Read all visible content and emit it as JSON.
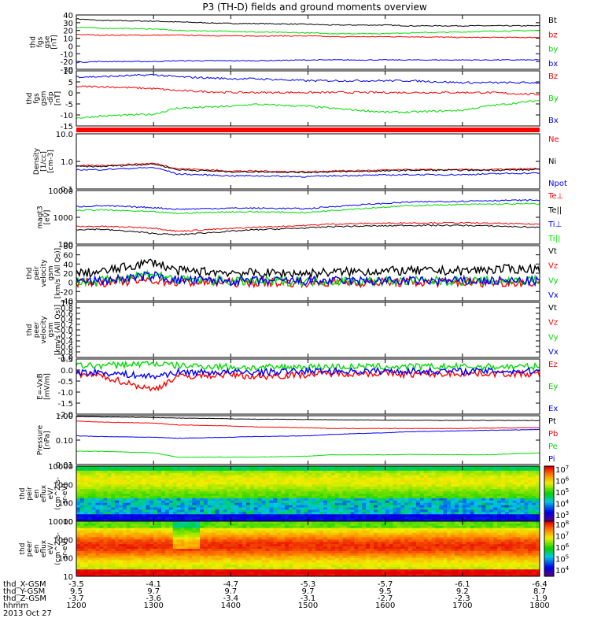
{
  "title": "P3 (TH-D) fields and ground moments overview",
  "date": "2013 Oct 27",
  "orbit": {
    "labels": [
      "thd_X-GSM",
      "thd_Y-GSM",
      "thd_Z-GSM",
      "hhmm"
    ],
    "columns": [
      {
        "x": "-3.5",
        "y": "9.5",
        "z": "-3.7",
        "t": "1200"
      },
      {
        "x": "-4.1",
        "y": "9.7",
        "z": "-3.6",
        "t": "1300"
      },
      {
        "x": "-4.7",
        "y": "9.7",
        "z": "-3.4",
        "t": "1400"
      },
      {
        "x": "-5.3",
        "y": "9.7",
        "z": "-3.1",
        "t": "1500"
      },
      {
        "x": "-5.7",
        "y": "9.5",
        "z": "-2.7",
        "t": "1600"
      },
      {
        "x": "-6.1",
        "y": "9.2",
        "z": "-2.3",
        "t": "1700"
      },
      {
        "x": "-6.4",
        "y": "8.7",
        "z": "-1.9",
        "t": "1800"
      }
    ]
  },
  "colors": {
    "black": "#000000",
    "red": "#ff0000",
    "green": "#00dd00",
    "blue": "#0000ff"
  },
  "chart_data": [
    {
      "type": "line",
      "ylabel": [
        "thd",
        "fgs",
        "gse",
        "[nT]"
      ],
      "ylim": [
        -30,
        40
      ],
      "yticks": [
        "40",
        "30",
        "20",
        "10",
        "0",
        "-10",
        "-20",
        "-30"
      ],
      "x": [
        1200,
        1230,
        1300,
        1330,
        1400,
        1430,
        1500,
        1530,
        1600,
        1630,
        1700,
        1730,
        1800
      ],
      "series": [
        {
          "name": "Bt",
          "color": "black",
          "values": [
            35,
            33,
            32,
            31,
            29,
            29,
            28,
            27,
            27,
            26,
            26,
            26,
            26
          ]
        },
        {
          "name": "bz",
          "color": "red",
          "values": [
            15,
            14,
            14,
            14,
            13,
            13,
            13,
            12,
            12,
            12,
            11,
            11,
            11
          ]
        },
        {
          "name": "by",
          "color": "green",
          "values": [
            24,
            23,
            22,
            20,
            19,
            18,
            17,
            16,
            16,
            17,
            18,
            19,
            20
          ]
        },
        {
          "name": "bx",
          "color": "blue",
          "values": [
            -21,
            -20,
            -20,
            -19,
            -19,
            -19,
            -18,
            -18,
            -18,
            -18,
            -18,
            -18,
            -18
          ]
        }
      ]
    },
    {
      "type": "line",
      "ylabel": [
        "thd",
        "fgs",
        "gsm",
        "-dip",
        "[nT]"
      ],
      "ylim": [
        -18,
        10
      ],
      "yticks": [
        "10",
        "5",
        "0",
        "-5",
        "-10",
        "-15"
      ],
      "x": [
        1200,
        1230,
        1300,
        1330,
        1400,
        1430,
        1500,
        1530,
        1600,
        1630,
        1700,
        1730,
        1800
      ],
      "series": [
        {
          "name": "Bz",
          "color": "red",
          "values": [
            2,
            2,
            1,
            0,
            -1,
            -1,
            -1,
            -1,
            -1,
            -1,
            -1,
            -1,
            -2
          ]
        },
        {
          "name": "By",
          "color": "green",
          "values": [
            -14,
            -13,
            -12,
            -9,
            -8,
            -7,
            -8,
            -9,
            -11,
            -11,
            -10,
            -8,
            -5
          ]
        },
        {
          "name": "Bx",
          "color": "blue",
          "values": [
            7,
            7,
            8,
            7,
            6,
            6,
            5,
            5,
            5,
            5,
            4,
            4,
            4
          ]
        }
      ]
    },
    {
      "type": "line",
      "ylabel": [
        "Density",
        "[1/cc]",
        "[cm-3]"
      ],
      "ylim": [
        0.1,
        10
      ],
      "log": true,
      "yticks": [
        "10.0",
        "1.0",
        "0.1"
      ],
      "x": [
        1200,
        1230,
        1300,
        1330,
        1400,
        1430,
        1500,
        1530,
        1600,
        1630,
        1700,
        1730,
        1800
      ],
      "series": [
        {
          "name": "Ne",
          "color": "red",
          "values": [
            0.7,
            0.7,
            0.85,
            0.55,
            0.45,
            0.45,
            0.42,
            0.45,
            0.48,
            0.5,
            0.5,
            0.5,
            0.55
          ]
        },
        {
          "name": "Ni",
          "color": "black",
          "values": [
            0.65,
            0.65,
            0.8,
            0.5,
            0.42,
            0.42,
            0.4,
            0.42,
            0.45,
            0.48,
            0.48,
            0.48,
            0.5
          ]
        },
        {
          "name": "Npot",
          "color": "blue",
          "values": [
            0.5,
            0.5,
            0.6,
            0.35,
            0.3,
            0.3,
            0.28,
            0.3,
            0.32,
            0.33,
            0.33,
            0.35,
            0.38
          ]
        }
      ]
    },
    {
      "type": "line",
      "ylabel": [
        "magt3",
        "[eV]"
      ],
      "ylim": [
        100,
        10000
      ],
      "log": true,
      "yticks": [
        "10000",
        "1000",
        "100"
      ],
      "x": [
        1200,
        1230,
        1300,
        1330,
        1400,
        1430,
        1500,
        1530,
        1600,
        1630,
        1700,
        1730,
        1800
      ],
      "series": [
        {
          "name": "Te⊥",
          "color": "red",
          "values": [
            450,
            460,
            400,
            300,
            380,
            420,
            500,
            560,
            600,
            620,
            620,
            600,
            550
          ]
        },
        {
          "name": "Te||",
          "color": "black",
          "values": [
            350,
            360,
            250,
            220,
            300,
            340,
            400,
            450,
            480,
            500,
            500,
            480,
            420
          ]
        },
        {
          "name": "Ti⊥",
          "color": "blue",
          "values": [
            2500,
            2700,
            2300,
            2000,
            2200,
            2200,
            2100,
            2500,
            3300,
            3700,
            4000,
            4200,
            4400
          ]
        },
        {
          "name": "Ti||",
          "color": "green",
          "values": [
            1800,
            1900,
            1600,
            1400,
            1600,
            1600,
            1500,
            1800,
            2400,
            2700,
            3000,
            3100,
            3200
          ]
        }
      ]
    },
    {
      "type": "line",
      "ylabel": [
        "thd",
        "peir",
        "velocity",
        "gsm",
        "[km/s (All Qs)]"
      ],
      "ylim": [
        -40,
        80
      ],
      "yticks": [
        "80",
        "60",
        "40",
        "20",
        "0",
        "-20",
        "-40"
      ],
      "x": [
        1200,
        1230,
        1300,
        1330,
        1400,
        1430,
        1500,
        1530,
        1600,
        1630,
        1700,
        1730,
        1800
      ],
      "series": [
        {
          "name": "Vt",
          "color": "black",
          "values": [
            20,
            22,
            45,
            25,
            22,
            20,
            20,
            22,
            25,
            25,
            25,
            28,
            30
          ]
        },
        {
          "name": "Vz",
          "color": "red",
          "values": [
            0,
            0,
            5,
            0,
            0,
            0,
            0,
            0,
            0,
            0,
            0,
            0,
            0
          ]
        },
        {
          "name": "Vy",
          "color": "green",
          "values": [
            2,
            2,
            20,
            5,
            3,
            2,
            2,
            3,
            3,
            3,
            3,
            3,
            5
          ]
        },
        {
          "name": "Vx",
          "color": "blue",
          "values": [
            3,
            3,
            15,
            5,
            3,
            3,
            3,
            3,
            3,
            3,
            3,
            3,
            3
          ]
        }
      ]
    },
    {
      "type": "line",
      "ylabel": [
        "thd",
        "peer",
        "velocity",
        "gsm",
        "[km/s (All Qs)]"
      ],
      "ylim": [
        -1,
        1
      ],
      "yticks": [
        "1.0",
        "0.8",
        "0.6",
        "0.4",
        "0.2",
        "0.0",
        "-0.2",
        "-0.4",
        "-0.6",
        "-0.8",
        "-1.0"
      ],
      "series": [
        {
          "name": "Vt",
          "color": "black",
          "values": []
        },
        {
          "name": "Vz",
          "color": "red",
          "values": []
        },
        {
          "name": "Vy",
          "color": "green",
          "values": []
        },
        {
          "name": "Vx",
          "color": "blue",
          "values": []
        }
      ]
    },
    {
      "type": "line",
      "ylabel": [
        "E=-VxB",
        "[mV/m]"
      ],
      "ylim": [
        -2,
        0.5
      ],
      "yticks": [
        "0.5",
        "0.0",
        "-0.5",
        "-1.0",
        "-1.5",
        "-2.0"
      ],
      "x": [
        1200,
        1230,
        1300,
        1330,
        1400,
        1430,
        1500,
        1530,
        1600,
        1630,
        1700,
        1730,
        1800
      ],
      "series": [
        {
          "name": "Ez",
          "color": "red",
          "values": [
            -0.2,
            -0.25,
            -0.9,
            -0.3,
            -0.2,
            -0.3,
            -0.2,
            -0.15,
            -0.15,
            -0.2,
            -0.15,
            -0.15,
            -0.2
          ]
        },
        {
          "name": "Ey",
          "color": "green",
          "values": [
            0.2,
            0.2,
            0.3,
            0.2,
            0.15,
            0.1,
            0.15,
            0.15,
            0.15,
            0.15,
            0.15,
            0.15,
            0.15
          ]
        },
        {
          "name": "Ex",
          "color": "blue",
          "values": [
            -0.1,
            -0.1,
            -0.3,
            -0.1,
            -0.1,
            -0.1,
            -0.05,
            -0.05,
            -0.05,
            -0.05,
            -0.05,
            -0.05,
            -0.05
          ]
        }
      ]
    },
    {
      "type": "line",
      "ylabel": [
        "Pressure",
        "[nPa]"
      ],
      "ylim": [
        0.01,
        1
      ],
      "log": true,
      "yticks": [
        "1.00",
        "0.10",
        "0.01"
      ],
      "x": [
        1200,
        1230,
        1300,
        1330,
        1400,
        1430,
        1500,
        1530,
        1600,
        1630,
        1700,
        1730,
        1800
      ],
      "series": [
        {
          "name": "Pt",
          "color": "black",
          "values": [
            0.95,
            0.9,
            0.85,
            0.8,
            0.75,
            0.72,
            0.7,
            0.68,
            0.66,
            0.65,
            0.64,
            0.64,
            0.64
          ]
        },
        {
          "name": "Pb",
          "color": "red",
          "values": [
            0.6,
            0.55,
            0.5,
            0.42,
            0.38,
            0.35,
            0.32,
            0.3,
            0.3,
            0.3,
            0.3,
            0.31,
            0.32
          ]
        },
        {
          "name": "Pe",
          "color": "green",
          "values": [
            0.035,
            0.035,
            0.03,
            0.02,
            0.02,
            0.02,
            0.022,
            0.025,
            0.025,
            0.026,
            0.025,
            0.025,
            0.03
          ]
        },
        {
          "name": "Pi",
          "color": "blue",
          "values": [
            0.15,
            0.14,
            0.13,
            0.12,
            0.13,
            0.14,
            0.15,
            0.17,
            0.2,
            0.22,
            0.24,
            0.25,
            0.27
          ]
        }
      ]
    },
    {
      "type": "heatmap",
      "ylabel": [
        "thd",
        "peir",
        "en",
        "eflux",
        "eV/",
        "(cm^2-s-",
        "sr-eV)"
      ],
      "yticks": [
        "10000",
        "1000",
        "100",
        "10"
      ],
      "colorbar_ticks": [
        "10^7",
        "10^6",
        "10^5",
        "10^4",
        "10^3"
      ]
    },
    {
      "type": "heatmap",
      "ylabel": [
        "thd",
        "peer",
        "en",
        "eflux",
        "eV/",
        "(cm^2-s-",
        "sr-eV)"
      ],
      "yticks": [
        "10000",
        "1000",
        "100",
        "10"
      ],
      "colorbar_ticks": [
        "10^8",
        "10^7",
        "10^6",
        "10^5",
        "10^4"
      ]
    }
  ]
}
